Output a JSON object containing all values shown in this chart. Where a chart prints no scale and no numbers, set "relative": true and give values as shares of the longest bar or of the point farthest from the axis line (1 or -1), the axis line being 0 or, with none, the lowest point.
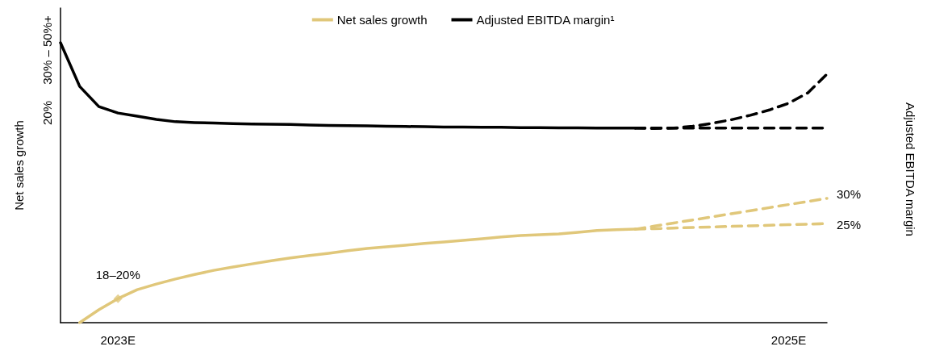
{
  "chart_data": {
    "type": "line",
    "relative": true,
    "ylabel": "Net sales growth",
    "legend": "top",
    "grid": false,
    "categories": [
      null,
      null,
      null,
      "2023E",
      null,
      null,
      null,
      null,
      null,
      null,
      null,
      null,
      null,
      null,
      null,
      null,
      null,
      null,
      null,
      null,
      null,
      null,
      null,
      null,
      null,
      null,
      null,
      null,
      null,
      null,
      null,
      null,
      null,
      null,
      null,
      null,
      null,
      null,
      "2025E",
      null,
      null
    ],
    "series": [
      {
        "name": "Net sales growth",
        "color": "#e0c77a",
        "line_style": "solid",
        "values": [
          null,
          0.0,
          0.046,
          0.086,
          0.118,
          0.138,
          0.156,
          0.172,
          0.187,
          0.199,
          0.21,
          0.221,
          0.231,
          0.24,
          0.248,
          0.257,
          0.265,
          0.271,
          0.277,
          0.283,
          0.288,
          0.294,
          0.3,
          0.306,
          0.311,
          0.314,
          0.317,
          0.323,
          0.329,
          0.332,
          0.334,
          null,
          null,
          null,
          null,
          null,
          null,
          null,
          null,
          null,
          null
        ]
      },
      {
        "name": "Adjusted EBITDA margin¹",
        "color": "#000000",
        "line_style": "solid",
        "values": [
          1.0,
          0.844,
          0.772,
          0.749,
          0.738,
          0.726,
          0.718,
          0.715,
          0.713,
          0.711,
          0.71,
          0.709,
          0.708,
          0.706,
          0.705,
          0.704,
          0.703,
          0.702,
          0.701,
          0.7,
          0.699,
          0.699,
          0.698,
          0.698,
          0.697,
          0.697,
          0.696,
          0.696,
          0.695,
          0.695,
          0.695,
          null,
          null,
          null,
          null,
          null,
          null,
          null,
          null,
          null,
          null
        ]
      },
      {
        "color": "#000000",
        "line_style": "dashed",
        "values": [
          null,
          null,
          null,
          null,
          null,
          null,
          null,
          null,
          null,
          null,
          null,
          null,
          null,
          null,
          null,
          null,
          null,
          null,
          null,
          null,
          null,
          null,
          null,
          null,
          null,
          null,
          null,
          null,
          null,
          null,
          0.695,
          0.695,
          0.695,
          0.695,
          0.695,
          0.695,
          0.695,
          0.695,
          0.695,
          0.695,
          0.695
        ]
      },
      {
        "color": "#000000",
        "line_style": "dashed",
        "values": [
          null,
          null,
          null,
          null,
          null,
          null,
          null,
          null,
          null,
          null,
          null,
          null,
          null,
          null,
          null,
          null,
          null,
          null,
          null,
          null,
          null,
          null,
          null,
          null,
          null,
          null,
          null,
          null,
          null,
          null,
          0.695,
          0.694,
          0.695,
          0.702,
          0.712,
          0.725,
          0.741,
          0.76,
          0.784,
          0.821,
          0.888
        ]
      },
      {
        "color": "#e0c77a",
        "line_style": "dashed",
        "values": [
          null,
          null,
          null,
          null,
          null,
          null,
          null,
          null,
          null,
          null,
          null,
          null,
          null,
          null,
          null,
          null,
          null,
          null,
          null,
          null,
          null,
          null,
          null,
          null,
          null,
          null,
          null,
          null,
          null,
          null,
          0.334,
          0.345,
          0.356,
          0.367,
          0.378,
          0.389,
          0.4,
          0.411,
          0.422,
          0.433,
          0.444
        ]
      },
      {
        "color": "#e0c77a",
        "line_style": "dashed",
        "values": [
          null,
          null,
          null,
          null,
          null,
          null,
          null,
          null,
          null,
          null,
          null,
          null,
          null,
          null,
          null,
          null,
          null,
          null,
          null,
          null,
          null,
          null,
          null,
          null,
          null,
          null,
          null,
          null,
          null,
          null,
          0.334,
          0.336,
          0.338,
          0.34,
          0.342,
          0.344,
          0.346,
          0.348,
          0.35,
          0.352,
          0.354
        ]
      },
      {
        "type": "scatter",
        "marker": "diamond",
        "color": "#e0c77a",
        "values": [
          null,
          null,
          null,
          0.086,
          null,
          null,
          null,
          null,
          null,
          null,
          null,
          null,
          null,
          null,
          null,
          null,
          null,
          null,
          null,
          null,
          null,
          null,
          null,
          null,
          null,
          null,
          null,
          null,
          null,
          null,
          null,
          null,
          null,
          null,
          null,
          null,
          null,
          null,
          null,
          null,
          null
        ]
      }
    ],
    "annotations": [
      {
        "text": "18–20%",
        "x": "2023E",
        "y": 0.086
      },
      "30%",
      "25%",
      "20%",
      "30% – 50%+",
      "Adjusted EBITDA margin"
    ]
  }
}
